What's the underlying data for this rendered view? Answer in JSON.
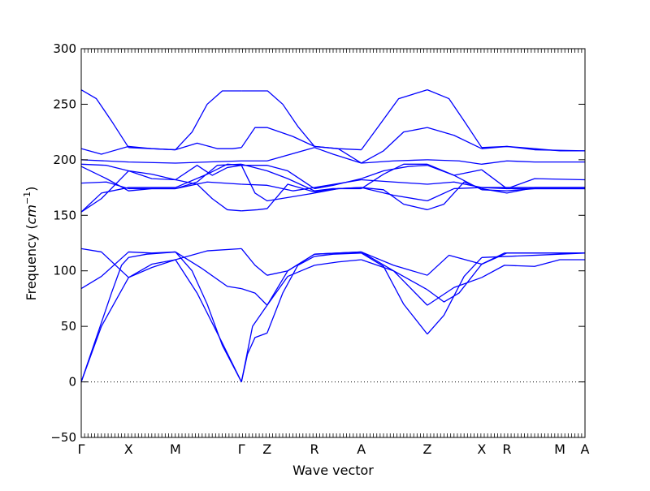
{
  "chart_data": {
    "type": "line",
    "xlabel": "Wave vector",
    "ylabel": "Frequency (cm^-1)",
    "ylabel_parts": {
      "text": "Frequency (",
      "unit": "cm",
      "exp": "−1",
      "close": ")"
    },
    "ylim": [
      -50,
      300
    ],
    "yticks": [
      -50,
      0,
      50,
      100,
      150,
      200,
      250,
      300
    ],
    "xlim": [
      0,
      1
    ],
    "xticks": [
      {
        "label": "Γ",
        "x": 0.0
      },
      {
        "label": "X",
        "x": 0.094
      },
      {
        "label": "M",
        "x": 0.187
      },
      {
        "label": "Γ",
        "x": 0.318
      },
      {
        "label": "Z",
        "x": 0.369
      },
      {
        "label": "R",
        "x": 0.463
      },
      {
        "label": "A",
        "x": 0.556
      },
      {
        "label": "Z",
        "x": 0.687
      },
      {
        "label": "X",
        "x": 0.795
      },
      {
        "label": "R",
        "x": 0.845
      },
      {
        "label": "M",
        "x": 0.95
      },
      {
        "label": "A",
        "x": 1.0
      }
    ],
    "grid": false,
    "zero_line": "dotted",
    "line_color": "#0000ff",
    "series": [
      {
        "x": [
          0,
          0.03,
          0.06,
          0.08,
          0.094,
          0.13,
          0.16,
          0.187
        ],
        "y": [
          0,
          40,
          80,
          105,
          112,
          115,
          116,
          117
        ]
      },
      {
        "x": [
          0.187,
          0.22,
          0.25,
          0.28,
          0.318
        ],
        "y": [
          117,
          100,
          70,
          33,
          0
        ]
      },
      {
        "x": [
          0.318,
          0.33,
          0.345,
          0.369
        ],
        "y": [
          0,
          25,
          40,
          44
        ]
      },
      {
        "x": [
          0.369,
          0.4,
          0.43,
          0.463
        ],
        "y": [
          44,
          80,
          105,
          113
        ]
      },
      {
        "x": [
          0.463,
          0.5,
          0.556
        ],
        "y": [
          113,
          115,
          116
        ]
      },
      {
        "x": [
          0.556,
          0.6,
          0.64,
          0.687
        ],
        "y": [
          116,
          104,
          70,
          43
        ]
      },
      {
        "x": [
          0.687,
          0.72,
          0.76,
          0.795
        ],
        "y": [
          43,
          60,
          95,
          112
        ]
      },
      {
        "x": [
          0.795,
          0.845,
          0.9,
          0.95,
          1.0
        ],
        "y": [
          112,
          113,
          114,
          115,
          116
        ]
      },
      {
        "x": [
          0,
          0.04,
          0.094,
          0.14,
          0.187
        ],
        "y": [
          0,
          50,
          94,
          106,
          110
        ]
      },
      {
        "x": [
          0.187,
          0.23,
          0.28,
          0.318
        ],
        "y": [
          110,
          80,
          35,
          0
        ]
      },
      {
        "x": [
          0.318,
          0.34,
          0.369
        ],
        "y": [
          0,
          50,
          69
        ]
      },
      {
        "x": [
          0.369,
          0.41,
          0.463
        ],
        "y": [
          69,
          95,
          105
        ]
      },
      {
        "x": [
          0.463,
          0.51,
          0.556
        ],
        "y": [
          105,
          108,
          110
        ]
      },
      {
        "x": [
          0.556,
          0.62,
          0.687
        ],
        "y": [
          110,
          100,
          69
        ]
      },
      {
        "x": [
          0.687,
          0.74,
          0.795
        ],
        "y": [
          69,
          85,
          94
        ]
      },
      {
        "x": [
          0.795,
          0.84,
          0.9,
          0.95,
          1.0
        ],
        "y": [
          94,
          105,
          104,
          110,
          110
        ]
      },
      {
        "x": [
          0,
          0.04,
          0.094,
          0.14,
          0.187
        ],
        "y": [
          84,
          95,
          117,
          116,
          117
        ]
      },
      {
        "x": [
          0.187,
          0.24,
          0.29,
          0.318
        ],
        "y": [
          117,
          102,
          86,
          84
        ]
      },
      {
        "x": [
          0.318,
          0.345,
          0.369
        ],
        "y": [
          84,
          80,
          69
        ]
      },
      {
        "x": [
          0.369,
          0.41,
          0.463
        ],
        "y": [
          69,
          100,
          115
        ]
      },
      {
        "x": [
          0.463,
          0.556
        ],
        "y": [
          115,
          117
        ]
      },
      {
        "x": [
          0.556,
          0.62,
          0.687
        ],
        "y": [
          117,
          100,
          83
        ]
      },
      {
        "x": [
          0.687,
          0.72,
          0.75,
          0.795
        ],
        "y": [
          83,
          72,
          80,
          106
        ]
      },
      {
        "x": [
          0.795,
          0.845,
          0.9,
          0.95,
          1.0
        ],
        "y": [
          106,
          116,
          116,
          116,
          116
        ]
      },
      {
        "x": [
          0,
          0.04,
          0.094,
          0.14,
          0.187
        ],
        "y": [
          120,
          117,
          94,
          103,
          110
        ]
      },
      {
        "x": [
          0.187,
          0.25,
          0.318
        ],
        "y": [
          110,
          118,
          120
        ]
      },
      {
        "x": [
          0.318,
          0.345,
          0.369
        ],
        "y": [
          120,
          105,
          96
        ]
      },
      {
        "x": [
          0.369,
          0.41,
          0.463
        ],
        "y": [
          96,
          100,
          115
        ]
      },
      {
        "x": [
          0.463,
          0.556
        ],
        "y": [
          115,
          117
        ]
      },
      {
        "x": [
          0.556,
          0.62,
          0.687
        ],
        "y": [
          117,
          105,
          96
        ]
      },
      {
        "x": [
          0.687,
          0.73,
          0.795
        ],
        "y": [
          96,
          114,
          106
        ]
      },
      {
        "x": [
          0.795,
          0.84,
          0.9,
          1.0
        ],
        "y": [
          106,
          116,
          116,
          116
        ]
      },
      {
        "x": [
          0,
          0.03,
          0.06,
          0.094
        ],
        "y": [
          263,
          255,
          235,
          211
        ]
      },
      {
        "x": [
          0.094,
          0.14,
          0.187
        ],
        "y": [
          211,
          210,
          209
        ]
      },
      {
        "x": [
          0.187,
          0.22,
          0.25,
          0.28,
          0.318
        ],
        "y": [
          209,
          225,
          250,
          262,
          262
        ]
      },
      {
        "x": [
          0.318,
          0.37,
          0.4,
          0.43,
          0.463
        ],
        "y": [
          262,
          262,
          250,
          230,
          212
        ]
      },
      {
        "x": [
          0.463,
          0.51,
          0.556
        ],
        "y": [
          212,
          210,
          209
        ]
      },
      {
        "x": [
          0.556,
          0.59,
          0.63,
          0.687
        ],
        "y": [
          209,
          230,
          255,
          263
        ]
      },
      {
        "x": [
          0.687,
          0.73,
          0.76,
          0.795
        ],
        "y": [
          263,
          255,
          235,
          211
        ]
      },
      {
        "x": [
          0.795,
          0.845,
          0.9,
          0.95,
          1.0
        ],
        "y": [
          211,
          212,
          210,
          208,
          208
        ]
      },
      {
        "x": [
          0,
          0.04,
          0.094,
          0.14,
          0.187
        ],
        "y": [
          210,
          205,
          212,
          210,
          209
        ]
      },
      {
        "x": [
          0.187,
          0.23,
          0.27,
          0.3,
          0.318
        ],
        "y": [
          209,
          215,
          210,
          210,
          211
        ]
      },
      {
        "x": [
          0.318,
          0.345,
          0.369,
          0.42,
          0.463
        ],
        "y": [
          211,
          229,
          229,
          221,
          212
        ]
      },
      {
        "x": [
          0.463,
          0.51,
          0.556
        ],
        "y": [
          212,
          210,
          197
        ]
      },
      {
        "x": [
          0.556,
          0.6,
          0.64,
          0.687
        ],
        "y": [
          197,
          208,
          225,
          229
        ]
      },
      {
        "x": [
          0.687,
          0.74,
          0.795
        ],
        "y": [
          229,
          222,
          210
        ]
      },
      {
        "x": [
          0.795,
          0.845,
          0.9,
          1.0
        ],
        "y": [
          210,
          212,
          209,
          208
        ]
      },
      {
        "x": [
          0,
          0.094,
          0.187,
          0.25,
          0.318,
          0.369,
          0.463
        ],
        "y": [
          200,
          198,
          197,
          198,
          199,
          199,
          211
        ]
      },
      {
        "x": [
          0.463,
          0.5,
          0.556,
          0.62,
          0.687
        ],
        "y": [
          211,
          205,
          197,
          199,
          200
        ]
      },
      {
        "x": [
          0.687,
          0.75,
          0.795,
          0.845,
          0.9,
          1.0
        ],
        "y": [
          200,
          199,
          196,
          199,
          198,
          198
        ]
      },
      {
        "x": [
          0,
          0.05,
          0.094,
          0.14,
          0.187
        ],
        "y": [
          196,
          195,
          190,
          187,
          182
        ]
      },
      {
        "x": [
          0.187,
          0.23,
          0.26,
          0.29,
          0.318
        ],
        "y": [
          182,
          195,
          186,
          193,
          195
        ]
      },
      {
        "x": [
          0.318,
          0.369,
          0.41,
          0.463
        ],
        "y": [
          195,
          195,
          190,
          174
        ]
      },
      {
        "x": [
          0.463,
          0.5,
          0.556
        ],
        "y": [
          174,
          177,
          183
        ]
      },
      {
        "x": [
          0.556,
          0.6,
          0.65,
          0.687
        ],
        "y": [
          183,
          190,
          194,
          195
        ]
      },
      {
        "x": [
          0.687,
          0.74,
          0.795
        ],
        "y": [
          195,
          186,
          191
        ]
      },
      {
        "x": [
          0.795,
          0.845,
          0.9,
          1.0
        ],
        "y": [
          191,
          174,
          183,
          182
        ]
      },
      {
        "x": [
          0,
          0.05,
          0.094,
          0.14,
          0.187
        ],
        "y": [
          194,
          183,
          172,
          174,
          174
        ]
      },
      {
        "x": [
          0.187,
          0.23,
          0.27,
          0.318
        ],
        "y": [
          174,
          180,
          195,
          196
        ]
      },
      {
        "x": [
          0.318,
          0.369,
          0.41,
          0.463
        ],
        "y": [
          196,
          190,
          183,
          172
        ]
      },
      {
        "x": [
          0.463,
          0.5,
          0.556
        ],
        "y": [
          172,
          174,
          174
        ]
      },
      {
        "x": [
          0.556,
          0.6,
          0.64,
          0.687
        ],
        "y": [
          174,
          187,
          196,
          196
        ]
      },
      {
        "x": [
          0.687,
          0.74,
          0.795
        ],
        "y": [
          196,
          186,
          173
        ]
      },
      {
        "x": [
          0.795,
          0.845,
          0.9,
          1.0
        ],
        "y": [
          173,
          172,
          174,
          174
        ]
      },
      {
        "x": [
          0,
          0.05,
          0.094,
          0.187
        ],
        "y": [
          179,
          180,
          174,
          174
        ]
      },
      {
        "x": [
          0.187,
          0.25,
          0.318
        ],
        "y": [
          174,
          180,
          178
        ]
      },
      {
        "x": [
          0.318,
          0.369,
          0.42,
          0.463
        ],
        "y": [
          178,
          177,
          172,
          175
        ]
      },
      {
        "x": [
          0.463,
          0.556
        ],
        "y": [
          175,
          182
        ]
      },
      {
        "x": [
          0.556,
          0.62,
          0.687
        ],
        "y": [
          182,
          180,
          178
        ]
      },
      {
        "x": [
          0.687,
          0.74,
          0.795
        ],
        "y": [
          178,
          180,
          175
        ]
      },
      {
        "x": [
          0.795,
          0.845,
          0.9,
          1.0
        ],
        "y": [
          175,
          174,
          174,
          174
        ]
      },
      {
        "x": [
          0,
          0.04,
          0.094,
          0.14,
          0.187
        ],
        "y": [
          153,
          165,
          190,
          183,
          182
        ]
      },
      {
        "x": [
          0.187,
          0.23,
          0.26,
          0.29,
          0.318
        ],
        "y": [
          182,
          178,
          165,
          155,
          154
        ]
      },
      {
        "x": [
          0.318,
          0.35,
          0.369,
          0.41,
          0.463
        ],
        "y": [
          154,
          155,
          156,
          178,
          171
        ]
      },
      {
        "x": [
          0.463,
          0.51,
          0.556
        ],
        "y": [
          171,
          174,
          175
        ]
      },
      {
        "x": [
          0.556,
          0.6,
          0.64,
          0.687
        ],
        "y": [
          175,
          173,
          160,
          155
        ]
      },
      {
        "x": [
          0.687,
          0.72,
          0.76,
          0.795
        ],
        "y": [
          155,
          160,
          180,
          174
        ]
      },
      {
        "x": [
          0.795,
          0.845,
          0.9,
          1.0
        ],
        "y": [
          174,
          170,
          175,
          175
        ]
      },
      {
        "x": [
          0,
          0.04,
          0.094,
          0.187
        ],
        "y": [
          153,
          170,
          175,
          175
        ]
      },
      {
        "x": [
          0.187,
          0.25,
          0.29,
          0.318
        ],
        "y": [
          175,
          187,
          196,
          195
        ]
      },
      {
        "x": [
          0.318,
          0.345,
          0.369,
          0.41,
          0.463
        ],
        "y": [
          195,
          170,
          163,
          166,
          170
        ]
      },
      {
        "x": [
          0.463,
          0.51,
          0.556
        ],
        "y": [
          170,
          174,
          175
        ]
      },
      {
        "x": [
          0.556,
          0.62,
          0.687
        ],
        "y": [
          175,
          168,
          163
        ]
      },
      {
        "x": [
          0.687,
          0.74,
          0.795
        ],
        "y": [
          163,
          174,
          175
        ]
      },
      {
        "x": [
          0.795,
          0.845,
          0.9,
          1.0
        ],
        "y": [
          175,
          175,
          175,
          175
        ]
      }
    ]
  }
}
